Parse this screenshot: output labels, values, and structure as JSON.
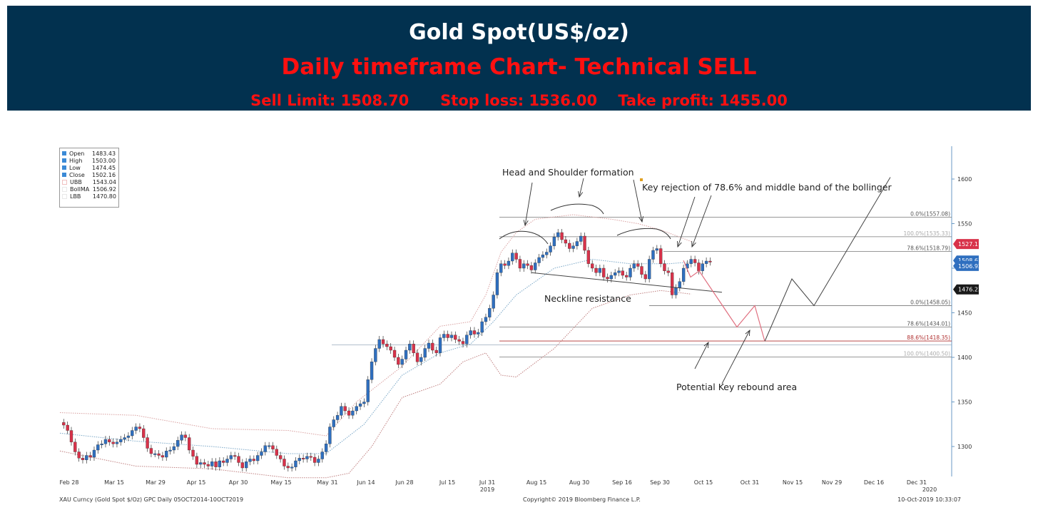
{
  "header": {
    "title": "Gold Spot(US$/oz)",
    "subtitle": "Daily timeframe Chart- Technical SELL",
    "levels": "Sell Limit: 1508.70      Stop loss: 1536.00    Take profit: 1455.00",
    "bg_color": "#02314f",
    "accent_color": "#ff1010"
  },
  "legend": [
    {
      "name": "Open",
      "value": "1483.43",
      "color": "#3b8ad6"
    },
    {
      "name": "High",
      "value": "1503.00",
      "color": "#3b8ad6"
    },
    {
      "name": "Low",
      "value": "1474.45",
      "color": "#3b8ad6"
    },
    {
      "name": "Close",
      "value": "1502.16",
      "color": "#3b8ad6"
    },
    {
      "name": "UBB",
      "value": "1543.04",
      "color": "#f0c0c0"
    },
    {
      "name": "BollMA",
      "value": "1506.92",
      "color": "#e8e8e8"
    },
    {
      "name": "LBB",
      "value": "1470.80",
      "color": "#e8e8e8"
    }
  ],
  "annotations": {
    "hs": "Head and Shoulder formation",
    "key_rejection": "Key rejection of 78.6% and middle band of the bollinger",
    "neckline": "Neckline resistance",
    "rebound": "Potential Key rebound area"
  },
  "fib_labels": [
    "0.0%(1557.08)",
    "100.0%(1535.33)",
    "78.6%(1518.79)",
    "0.0%(1458.05)",
    "78.6%(1434.01)",
    "88.6%(1418.35)",
    "100.0%(1400.50)"
  ],
  "price_tags": [
    "1527.11",
    "1508.61",
    "1506.92",
    "1476.23"
  ],
  "footer": {
    "left": "XAU Curncy (Gold Spot  $/Oz) GPC  Daily 05OCT2014-10OCT2019",
    "middle": "Copyright© 2019 Bloomberg Finance L.P.",
    "right": "10-Oct-2019 10:33:07"
  },
  "chart_data": {
    "type": "candlestick",
    "title": "",
    "x_ticks": [
      "Feb 28",
      "Mar 15",
      "Mar 29",
      "Apr 15",
      "Apr 30",
      "May 15",
      "May 31",
      "Jun 14",
      "Jun 28",
      "Jul 15",
      "Jul 31",
      "Aug 15",
      "Aug 30",
      "Sep 16",
      "Sep 30",
      "Oct 15",
      "Oct 31",
      "Nov 15",
      "Nov 29",
      "Dec 16",
      "Dec 31"
    ],
    "x_tick_sublabels": {
      "Jul 31": "2019",
      "Dec 31": "2020"
    },
    "y_ticks": [
      1300,
      1350,
      1400,
      1450,
      1500,
      1550,
      1600
    ],
    "ylim": [
      1265,
      1640
    ],
    "candle_colors": {
      "up": "#2f6fbf",
      "down": "#d8324a"
    },
    "closes": [
      1327,
      1324,
      1318,
      1305,
      1294,
      1287,
      1285,
      1290,
      1288,
      1296,
      1302,
      1303,
      1308,
      1305,
      1303,
      1305,
      1308,
      1310,
      1312,
      1318,
      1322,
      1320,
      1310,
      1298,
      1292,
      1292,
      1290,
      1288,
      1295,
      1296,
      1300,
      1307,
      1313,
      1310,
      1296,
      1289,
      1280,
      1282,
      1280,
      1278,
      1283,
      1277,
      1284,
      1282,
      1286,
      1290,
      1289,
      1282,
      1276,
      1283,
      1286,
      1284,
      1290,
      1294,
      1301,
      1301,
      1297,
      1290,
      1286,
      1278,
      1276,
      1277,
      1284,
      1287,
      1286,
      1289,
      1288,
      1282,
      1286,
      1294,
      1303,
      1322,
      1330,
      1335,
      1345,
      1340,
      1335,
      1340,
      1345,
      1348,
      1350,
      1375,
      1395,
      1410,
      1420,
      1415,
      1412,
      1408,
      1400,
      1392,
      1398,
      1408,
      1415,
      1405,
      1395,
      1400,
      1410,
      1416,
      1408,
      1405,
      1422,
      1426,
      1422,
      1425,
      1420,
      1418,
      1415,
      1425,
      1430,
      1426,
      1428,
      1440,
      1445,
      1455,
      1470,
      1495,
      1505,
      1503,
      1508,
      1517,
      1510,
      1500,
      1505,
      1503,
      1498,
      1506,
      1512,
      1515,
      1518,
      1525,
      1535,
      1540,
      1532,
      1528,
      1522,
      1525,
      1530,
      1536,
      1520,
      1505,
      1500,
      1495,
      1500,
      1490,
      1488,
      1492,
      1495,
      1497,
      1492,
      1490,
      1500,
      1505,
      1502,
      1493,
      1488,
      1510,
      1520,
      1522,
      1505,
      1497,
      1495,
      1470,
      1478,
      1485,
      1500,
      1505,
      1510,
      1506,
      1497,
      1505,
      1508,
      1507
    ],
    "bollinger_upper": [
      [
        0,
        1338
      ],
      [
        20,
        1335
      ],
      [
        40,
        1320
      ],
      [
        60,
        1318
      ],
      [
        70,
        1312
      ],
      [
        78,
        1350
      ],
      [
        90,
        1390
      ],
      [
        100,
        1435
      ],
      [
        108,
        1440
      ],
      [
        112,
        1470
      ],
      [
        116,
        1518
      ],
      [
        120,
        1540
      ],
      [
        125,
        1555
      ],
      [
        135,
        1560
      ],
      [
        145,
        1555
      ],
      [
        152,
        1550
      ],
      [
        158,
        1543
      ],
      [
        166,
        1530
      ]
    ],
    "bollinger_mid": [
      [
        0,
        1315
      ],
      [
        20,
        1306
      ],
      [
        40,
        1300
      ],
      [
        60,
        1292
      ],
      [
        70,
        1292
      ],
      [
        80,
        1325
      ],
      [
        90,
        1380
      ],
      [
        100,
        1405
      ],
      [
        108,
        1415
      ],
      [
        114,
        1440
      ],
      [
        120,
        1470
      ],
      [
        130,
        1500
      ],
      [
        140,
        1510
      ],
      [
        150,
        1505
      ],
      [
        160,
        1505
      ],
      [
        166,
        1507
      ]
    ],
    "bollinger_lower": [
      [
        0,
        1295
      ],
      [
        20,
        1278
      ],
      [
        40,
        1275
      ],
      [
        60,
        1265
      ],
      [
        70,
        1265
      ],
      [
        76,
        1270
      ],
      [
        82,
        1300
      ],
      [
        90,
        1355
      ],
      [
        100,
        1370
      ],
      [
        106,
        1395
      ],
      [
        112,
        1405
      ],
      [
        116,
        1380
      ],
      [
        120,
        1378
      ],
      [
        130,
        1410
      ],
      [
        140,
        1455
      ],
      [
        150,
        1470
      ],
      [
        158,
        1475
      ],
      [
        166,
        1471
      ]
    ],
    "projected_path_sell": [
      [
        1508.61,
        "Oct 3"
      ],
      [
        1490,
        "Oct 6"
      ],
      [
        1497,
        "Oct 10"
      ],
      [
        1434,
        "Oct 31"
      ],
      [
        1458,
        "Nov 6"
      ],
      [
        1418,
        "Nov 11"
      ]
    ],
    "projected_path_rebound": [
      [
        1418,
        "Nov 11"
      ],
      [
        1488,
        "Nov 22"
      ],
      [
        1458,
        "Nov 28"
      ],
      [
        1602,
        "Dec 13"
      ]
    ],
    "horizontal_levels": [
      1557.08,
      1535.33,
      1518.79,
      1458.05,
      1434.01,
      1418.35,
      1400.5
    ],
    "neckline": [
      [
        1495,
        "Aug 8"
      ],
      [
        1473,
        "Sep 30"
      ]
    ]
  }
}
